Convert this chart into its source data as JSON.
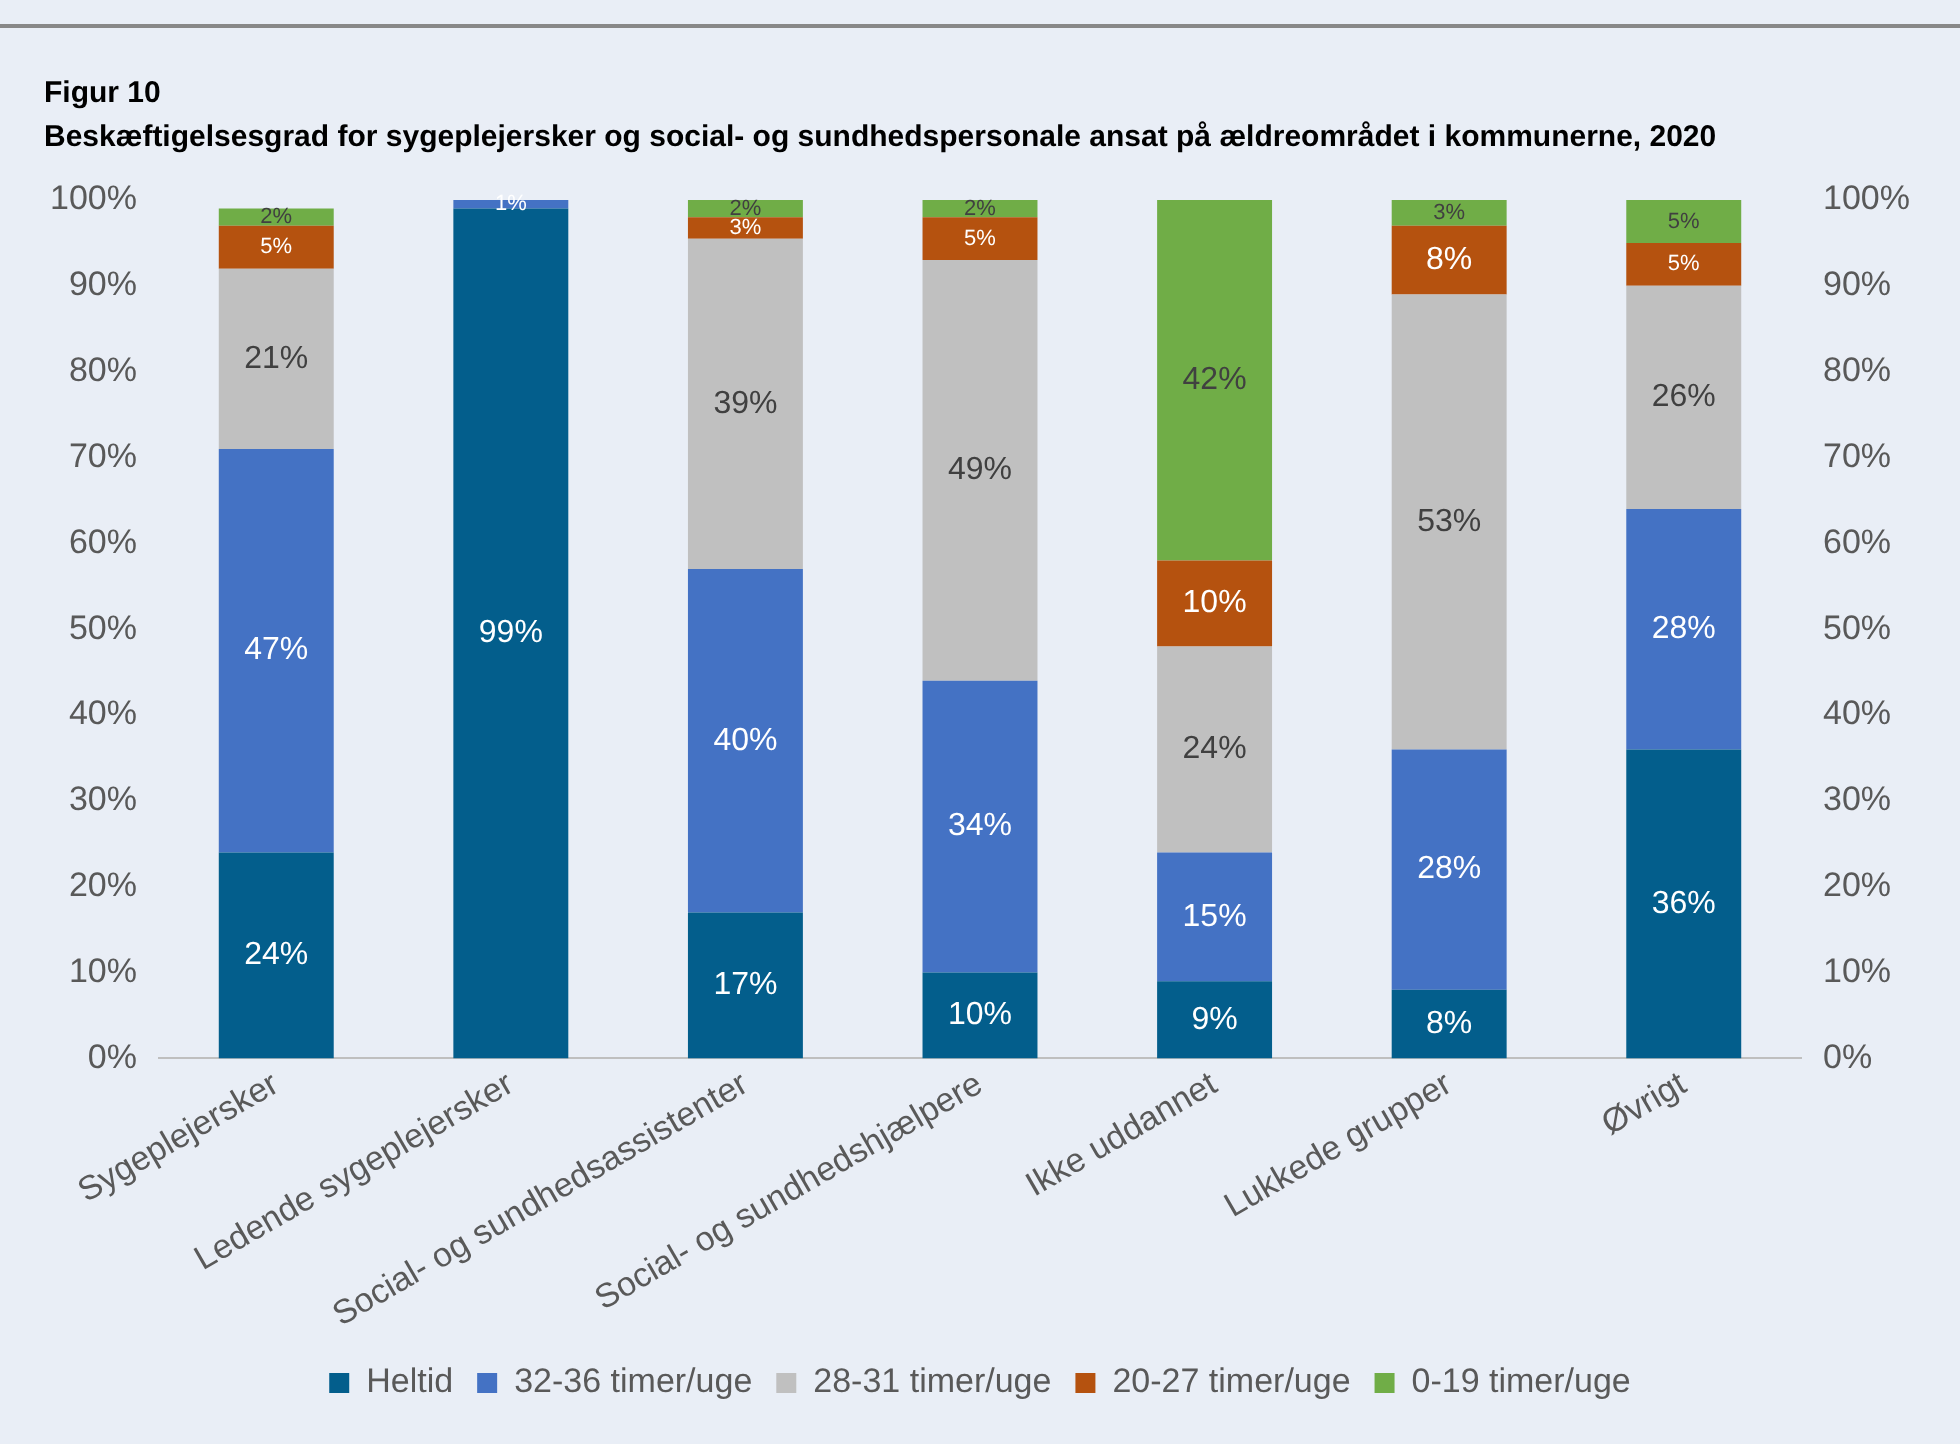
{
  "chart_data": {
    "type": "bar",
    "stacked": true,
    "title": "Figur 10",
    "subtitle": "Beskæftigelsesgrad for sygeplejersker og social- og sundhedspersonale ansat på ældreområdet i kommunerne, 2020",
    "categories": [
      "Sygeplejersker",
      "Ledende sygeplejersker",
      "Social- og sundhedsassistenter",
      "Social- og sundhedshjælpere",
      "Ikke uddannet",
      "Lukkede grupper",
      "Øvrigt"
    ],
    "series": [
      {
        "name": "Heltid",
        "color": "#035e8c",
        "values": [
          24,
          99,
          17,
          10,
          9,
          8,
          36
        ],
        "value_labels": [
          "24%",
          "99%",
          "17%",
          "10%",
          "9%",
          "8%",
          "36%"
        ]
      },
      {
        "name": "32-36 timer/uge",
        "color": "#4472c4",
        "values": [
          47,
          1,
          40,
          34,
          15,
          28,
          28
        ],
        "value_labels": [
          "47%",
          "1%",
          "40%",
          "34%",
          "15%",
          "28%",
          "28%"
        ]
      },
      {
        "name": "28-31 timer/uge",
        "color": "#c0c0c0",
        "values": [
          21,
          null,
          38.5,
          49,
          24,
          53,
          26
        ],
        "value_labels": [
          "21%",
          null,
          "39%",
          "49%",
          "24%",
          "53%",
          "26%"
        ]
      },
      {
        "name": "20-27 timer/uge",
        "color": "#b5520f",
        "values": [
          5,
          null,
          2.5,
          5,
          10,
          8,
          5
        ],
        "value_labels": [
          "5%",
          null,
          "3%",
          "5%",
          "10%",
          "8%",
          "5%"
        ]
      },
      {
        "name": "0-19 timer/uge",
        "color": "#70ad47",
        "values": [
          2,
          null,
          2,
          2,
          42,
          3,
          5
        ],
        "value_labels": [
          "2%",
          null,
          "2%",
          "2%",
          "42%",
          "3%",
          "5%"
        ]
      }
    ],
    "ylim": [
      0,
      100
    ],
    "yticks": [
      {
        "value": 0,
        "label": "0%"
      },
      {
        "value": 10,
        "label": "10%"
      },
      {
        "value": 20,
        "label": "20%"
      },
      {
        "value": 30,
        "label": "30%"
      },
      {
        "value": 40,
        "label": "40%"
      },
      {
        "value": 50,
        "label": "50%"
      },
      {
        "value": 60,
        "label": "60%"
      },
      {
        "value": 70,
        "label": "70%"
      },
      {
        "value": 80,
        "label": "80%"
      },
      {
        "value": 90,
        "label": "90%"
      },
      {
        "value": 100,
        "label": "100%"
      }
    ],
    "y2lim": [
      0,
      100
    ],
    "y2ticks": [
      {
        "value": 0,
        "label": "0%"
      },
      {
        "value": 10,
        "label": "10%"
      },
      {
        "value": 20,
        "label": "20%"
      },
      {
        "value": 30,
        "label": "30%"
      },
      {
        "value": 40,
        "label": "40%"
      },
      {
        "value": 50,
        "label": "50%"
      },
      {
        "value": 60,
        "label": "60%"
      },
      {
        "value": 70,
        "label": "70%"
      },
      {
        "value": 80,
        "label": "80%"
      },
      {
        "value": 90,
        "label": "90%"
      },
      {
        "value": 100,
        "label": "100%"
      }
    ],
    "grid": false,
    "legend": "bottom"
  }
}
